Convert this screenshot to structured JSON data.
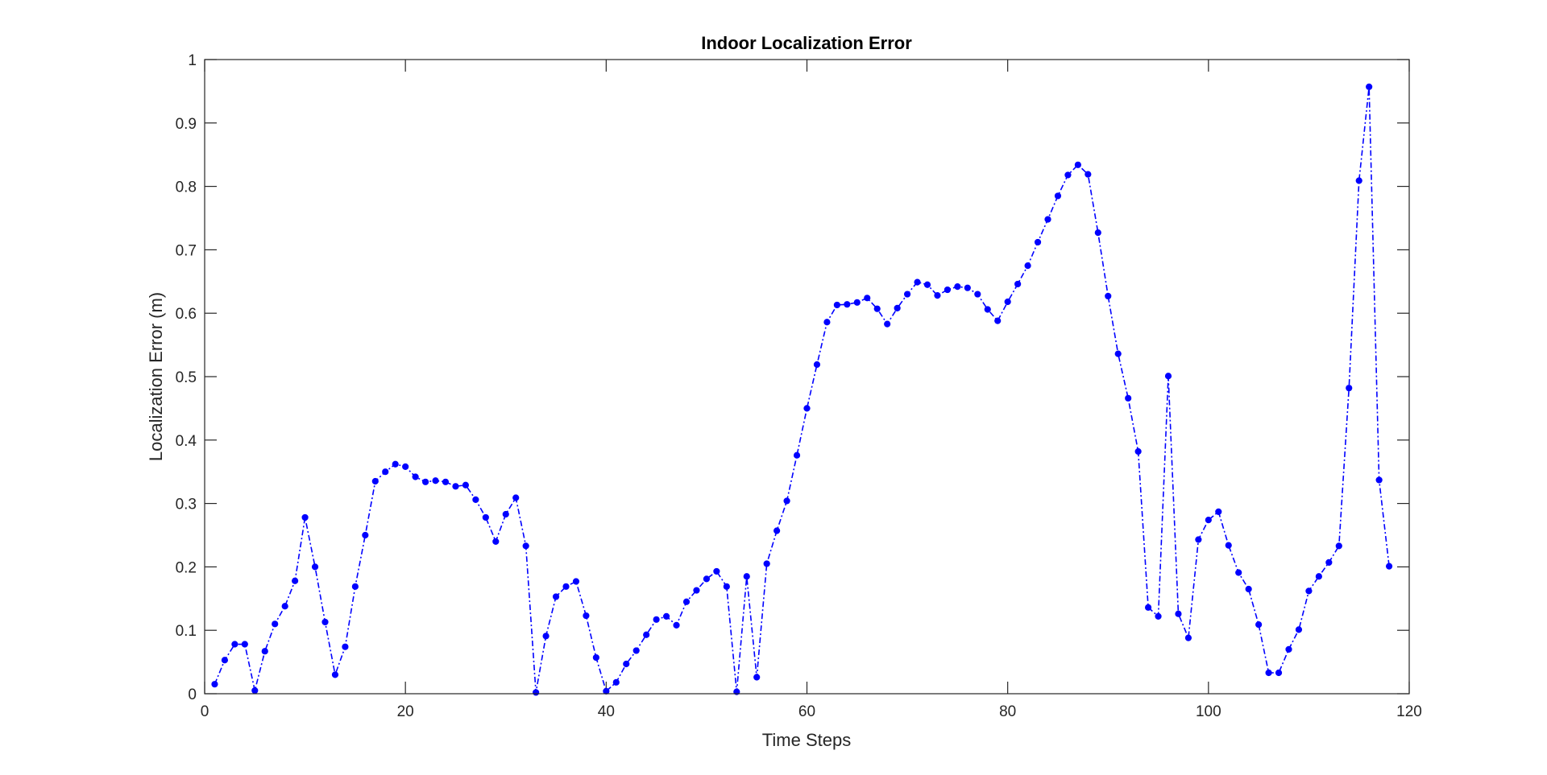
{
  "chart_data": {
    "type": "line",
    "title": "Indoor Localization Error",
    "xlabel": "Time Steps",
    "ylabel": "Localization Error (m)",
    "xlim": [
      0,
      120
    ],
    "ylim": [
      0,
      1
    ],
    "x_ticks": [
      "0",
      "20",
      "40",
      "60",
      "80",
      "100",
      "120"
    ],
    "y_ticks": [
      "0",
      "0.1",
      "0.2",
      "0.3",
      "0.4",
      "0.5",
      "0.6",
      "0.7",
      "0.8",
      "0.9",
      "1"
    ],
    "grid": false,
    "line_style": "dash-dot",
    "marker": "circle",
    "color": "#0000ff",
    "series": [
      {
        "x": [
          1,
          2,
          3,
          4,
          5,
          6,
          7,
          8,
          9,
          10,
          11,
          12,
          13,
          14,
          15,
          16,
          17,
          18,
          19,
          20,
          21,
          22,
          23,
          24,
          25,
          26,
          27,
          28,
          29,
          30,
          31,
          32,
          33,
          34,
          35,
          36,
          37,
          38,
          39,
          40,
          41,
          42,
          43,
          44,
          45,
          46,
          47,
          48,
          49,
          50,
          51,
          52,
          53,
          54,
          55,
          56,
          57,
          58,
          59,
          60,
          61,
          62,
          63,
          64,
          65,
          66,
          67,
          68,
          69,
          70,
          71,
          72,
          73,
          74,
          75,
          76,
          77,
          78,
          79,
          80,
          81,
          82,
          83,
          84,
          85,
          86,
          87,
          88,
          89,
          90,
          91,
          92,
          93,
          94,
          95,
          96,
          97,
          98,
          99,
          100,
          101,
          102,
          103,
          104,
          105,
          106,
          107,
          108,
          109,
          110,
          111,
          112,
          113,
          114,
          115,
          116,
          117,
          118
        ],
        "values": [
          0.015,
          0.053,
          0.078,
          0.078,
          0.005,
          0.067,
          0.11,
          0.138,
          0.178,
          0.278,
          0.2,
          0.113,
          0.03,
          0.074,
          0.169,
          0.25,
          0.335,
          0.35,
          0.362,
          0.358,
          0.342,
          0.334,
          0.336,
          0.334,
          0.327,
          0.329,
          0.306,
          0.278,
          0.24,
          0.283,
          0.309,
          0.233,
          0.002,
          0.091,
          0.153,
          0.169,
          0.177,
          0.123,
          0.057,
          0.004,
          0.018,
          0.047,
          0.068,
          0.093,
          0.117,
          0.122,
          0.108,
          0.145,
          0.163,
          0.181,
          0.193,
          0.169,
          0.003,
          0.185,
          0.026,
          0.205,
          0.257,
          0.304,
          0.376,
          0.45,
          0.519,
          0.586,
          0.613,
          0.614,
          0.617,
          0.624,
          0.607,
          0.583,
          0.608,
          0.63,
          0.649,
          0.645,
          0.628,
          0.637,
          0.642,
          0.64,
          0.63,
          0.606,
          0.588,
          0.618,
          0.646,
          0.675,
          0.712,
          0.748,
          0.785,
          0.818,
          0.834,
          0.819,
          0.727,
          0.627,
          0.536,
          0.466,
          0.382,
          0.136,
          0.122,
          0.501,
          0.126,
          0.088,
          0.243,
          0.274,
          0.287,
          0.234,
          0.191,
          0.165,
          0.109,
          0.033,
          0.033,
          0.07,
          0.101,
          0.162,
          0.185,
          0.207,
          0.233,
          0.482,
          0.809,
          0.957,
          0.337,
          0.201
        ]
      }
    ]
  }
}
